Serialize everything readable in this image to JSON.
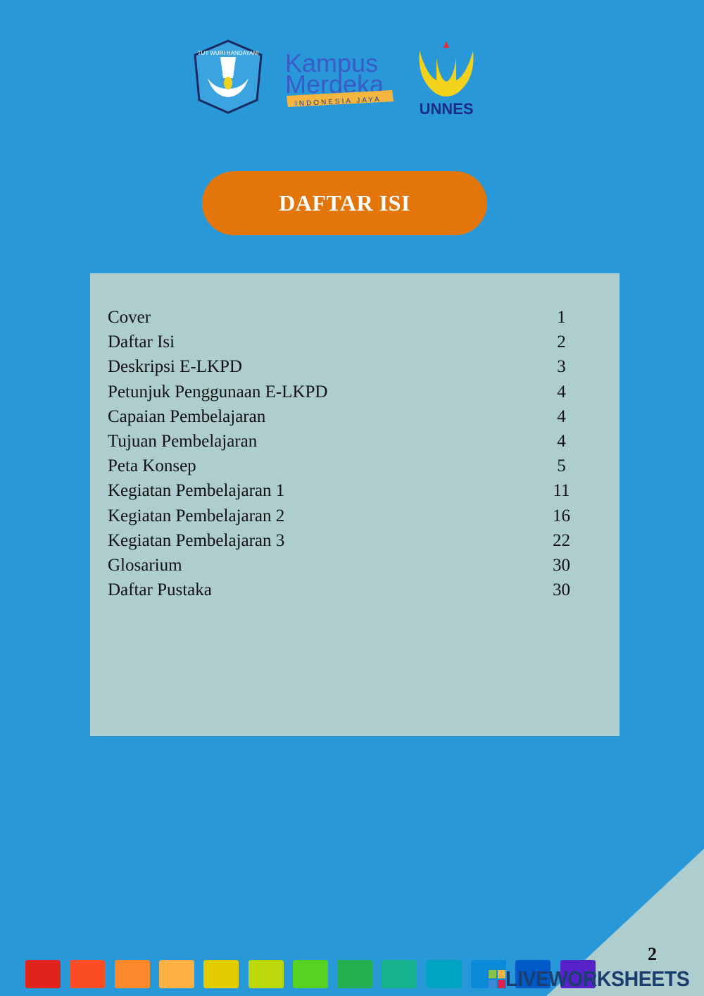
{
  "logos": {
    "tut_wuri": "TUT WURI HANDAYANI",
    "kampus_merdeka": [
      "Kampus",
      "Merdeka",
      "INDONESIA JAYA"
    ],
    "unnes": "UNNES"
  },
  "title": "DAFTAR ISI",
  "toc": [
    {
      "label": "Cover",
      "page": "1"
    },
    {
      "label": "Daftar Isi",
      "page": "2"
    },
    {
      "label": "Deskripsi E-LKPD",
      "page": "3"
    },
    {
      "label": "Petunjuk Penggunaan E-LKPD",
      "page": "4"
    },
    {
      "label": "Capaian Pembelajaran",
      "page": "4"
    },
    {
      "label": "Tujuan Pembelajaran",
      "page": "4"
    },
    {
      "label": "Peta Konsep",
      "page": "5"
    },
    {
      "label": "Kegiatan Pembelajaran 1",
      "page": "11"
    },
    {
      "label": "Kegiatan Pembelajaran 2",
      "page": "16"
    },
    {
      "label": "Kegiatan Pembelajaran 3",
      "page": "22"
    },
    {
      "label": "Glosarium",
      "page": "30"
    },
    {
      "label": "Daftar Pustaka",
      "page": "30"
    }
  ],
  "page_number": "2",
  "watermark": "LIVEWORKSHEETS",
  "colors": {
    "background": "#2898d8",
    "title_pill": "#e2760a",
    "toc_box": "#adcdcf",
    "swatches": [
      "#e0241c",
      "#fc4c22",
      "#fc8a2c",
      "#fdb043",
      "#e2cc00",
      "#bcd80b",
      "#56d221",
      "#22b14c",
      "#16b48c",
      "#00a3c0",
      "#0a8ad8",
      "#0059c8",
      "#5722c8"
    ]
  }
}
